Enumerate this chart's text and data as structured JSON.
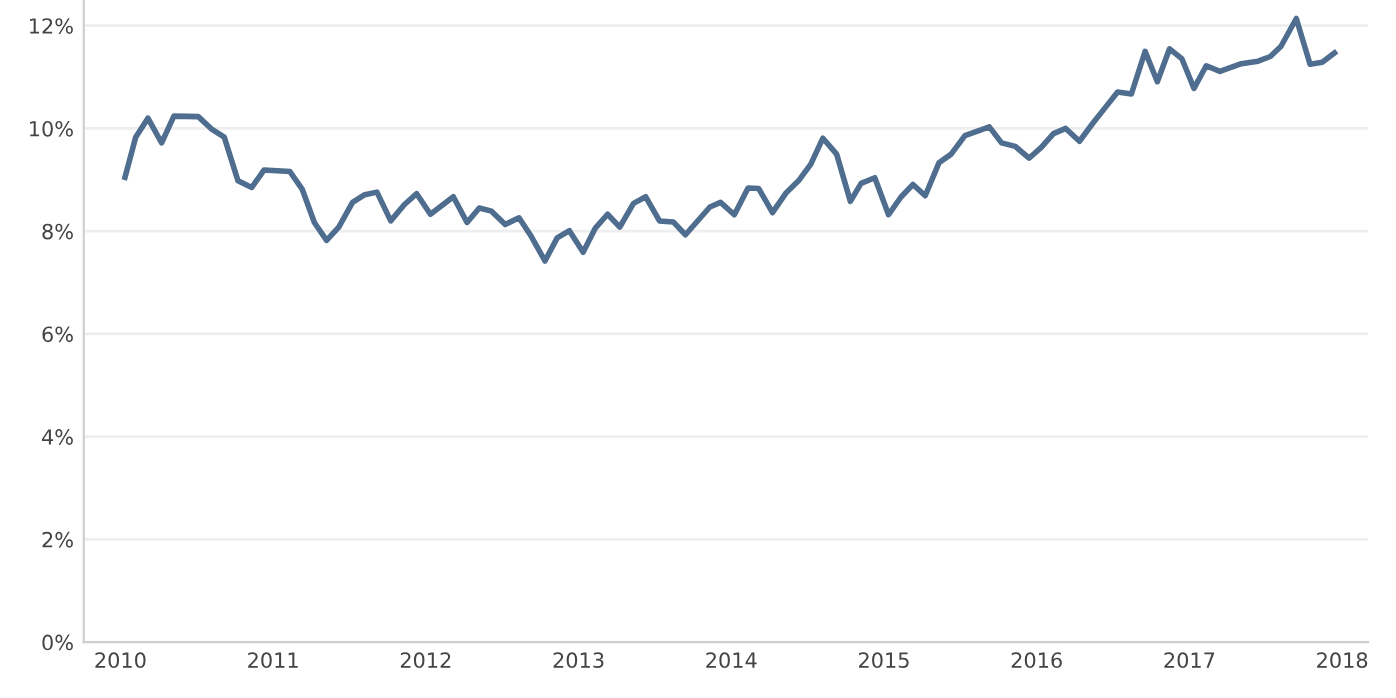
{
  "chart_data": {
    "type": "line",
    "x": [
      2010.03,
      2010.1,
      2010.18,
      2010.27,
      2010.35,
      2010.51,
      2010.6,
      2010.68,
      2010.77,
      2010.86,
      2010.94,
      2011.11,
      2011.19,
      2011.27,
      2011.35,
      2011.43,
      2011.52,
      2011.6,
      2011.68,
      2011.77,
      2011.86,
      2011.94,
      2012.03,
      2012.18,
      2012.27,
      2012.35,
      2012.43,
      2012.52,
      2012.61,
      2012.69,
      2012.78,
      2012.86,
      2012.94,
      2013.03,
      2013.11,
      2013.19,
      2013.27,
      2013.36,
      2013.44,
      2013.53,
      2013.62,
      2013.7,
      2013.86,
      2013.93,
      2014.02,
      2014.11,
      2014.18,
      2014.27,
      2014.36,
      2014.44,
      2014.52,
      2014.6,
      2014.69,
      2014.78,
      2014.85,
      2014.94,
      2015.03,
      2015.11,
      2015.19,
      2015.27,
      2015.36,
      2015.44,
      2015.53,
      2015.69,
      2015.77,
      2015.86,
      2015.95,
      2016.03,
      2016.11,
      2016.19,
      2016.28,
      2016.37,
      2016.45,
      2016.53,
      2016.62,
      2016.71,
      2016.79,
      2016.87,
      2016.95,
      2017.03,
      2017.11,
      2017.2,
      2017.34,
      2017.45,
      2017.53,
      2017.6,
      2017.7,
      2017.79,
      2017.87,
      2017.95
    ],
    "series": [
      {
        "color": "#4e6d8f",
        "values": [
          9.05,
          9.83,
          10.2,
          9.72,
          10.24,
          10.23,
          9.98,
          9.83,
          8.98,
          8.85,
          9.19,
          9.16,
          8.82,
          8.17,
          7.82,
          8.08,
          8.56,
          8.71,
          8.76,
          8.2,
          8.52,
          8.73,
          8.33,
          8.67,
          8.17,
          8.45,
          8.39,
          8.13,
          8.26,
          7.9,
          7.42,
          7.87,
          8.01,
          7.59,
          8.06,
          8.33,
          8.08,
          8.54,
          8.67,
          8.2,
          8.18,
          7.93,
          8.47,
          8.56,
          8.32,
          8.84,
          8.83,
          8.36,
          8.75,
          8.98,
          9.3,
          9.81,
          9.5,
          8.58,
          8.93,
          9.04,
          8.32,
          8.66,
          8.91,
          8.69,
          9.33,
          9.5,
          9.86,
          10.03,
          9.72,
          9.65,
          9.42,
          9.63,
          9.9,
          10.0,
          9.75,
          10.11,
          10.41,
          10.71,
          10.67,
          11.5,
          10.91,
          11.55,
          11.36,
          10.78,
          11.22,
          11.11,
          11.26,
          11.31,
          11.4,
          11.6,
          12.14,
          11.25,
          11.29,
          11.47
        ]
      }
    ],
    "xlim": [
      2009.76,
      2018.17
    ],
    "xticks": [
      2010,
      2011,
      2012,
      2013,
      2014,
      2015,
      2016,
      2017,
      2018
    ],
    "ylim": [
      0,
      12.5
    ],
    "yticks": [
      {
        "value": 0,
        "label": "0%"
      },
      {
        "value": 2,
        "label": "2%"
      },
      {
        "value": 4,
        "label": "4%"
      },
      {
        "value": 6,
        "label": "6%"
      },
      {
        "value": 8,
        "label": "8%"
      },
      {
        "value": 10,
        "label": "10%"
      },
      {
        "value": 12,
        "label": "12%"
      }
    ],
    "grid": "y",
    "marker": "none",
    "line_style": "solid"
  }
}
